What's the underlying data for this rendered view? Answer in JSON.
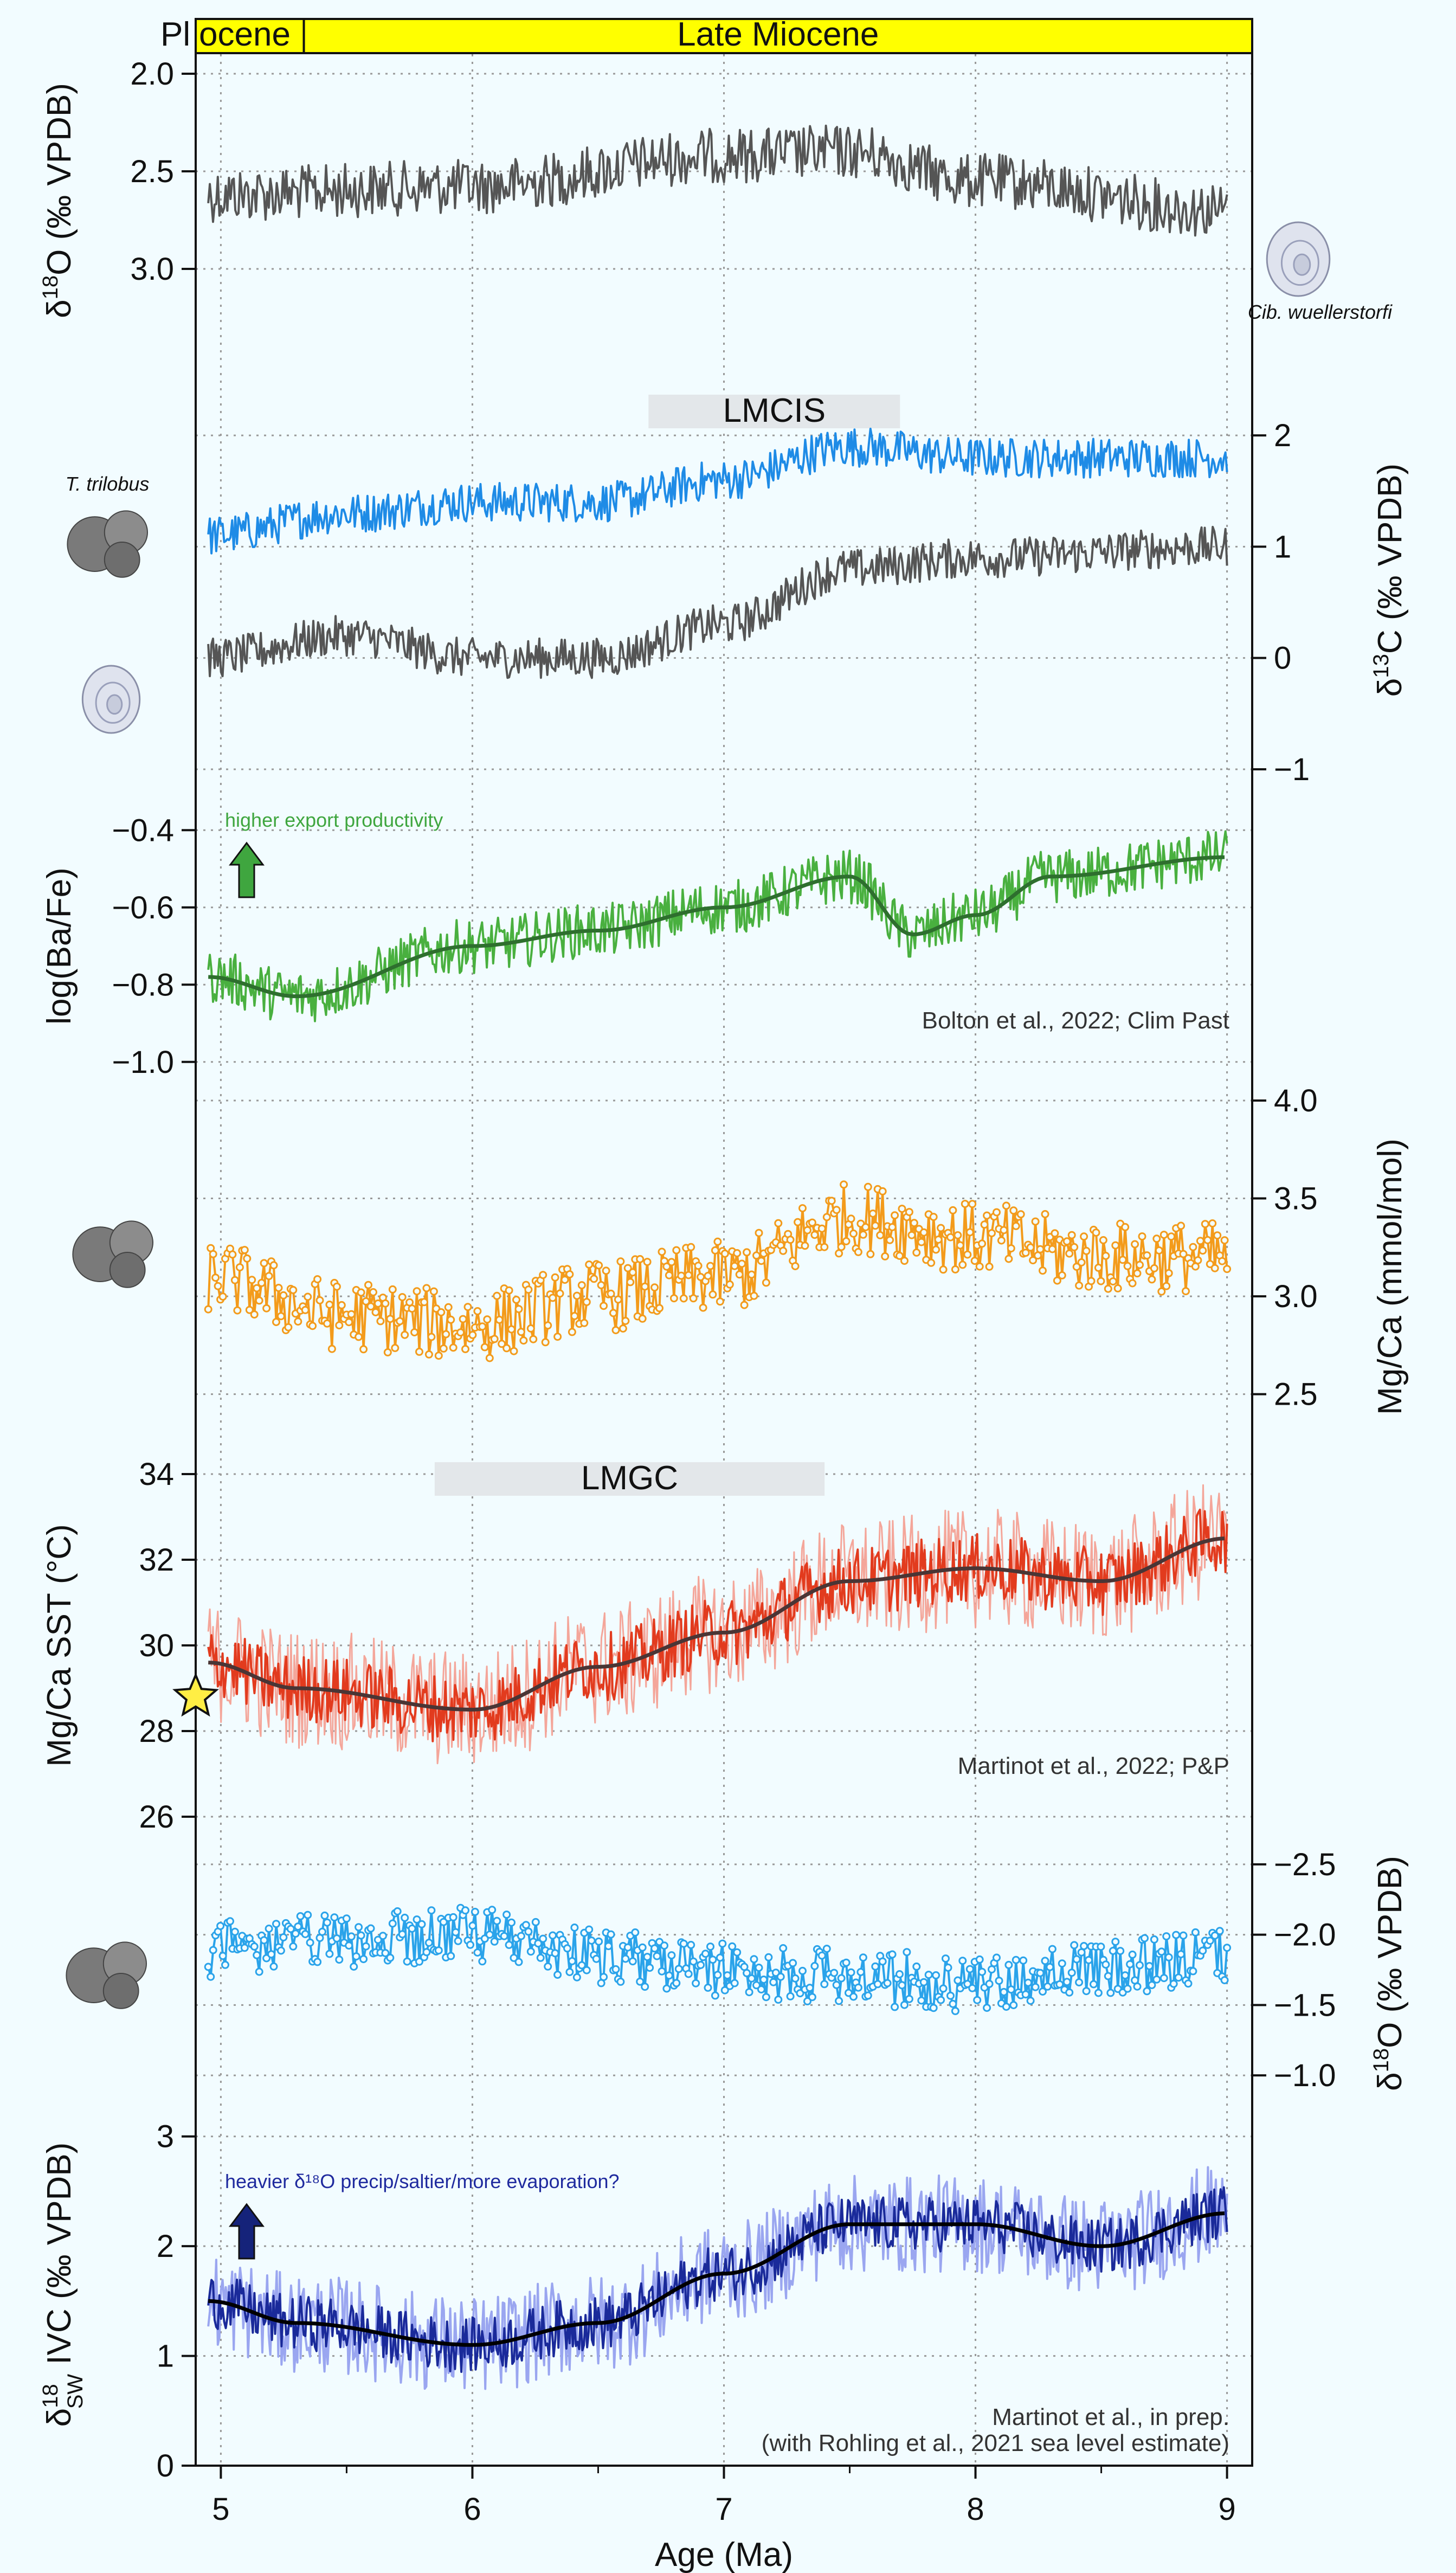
{
  "chart_data": {
    "type": "line",
    "x": {
      "label": "Age (Ma)",
      "range": [
        4.9,
        9.1
      ],
      "ticks": [
        "5",
        "6",
        "7",
        "8",
        "9"
      ],
      "grid": true
    },
    "epochs": [
      {
        "label": "Pliocene",
        "label_part1": "Pl",
        "label_part2": "ocene",
        "range": [
          4.9,
          5.33
        ],
        "color": "#ffff00"
      },
      {
        "label": "Late Miocene",
        "range": [
          5.33,
          9.1
        ],
        "color": "#ffff00"
      }
    ],
    "species": {
      "cib": "Cib. wuellerstorfi",
      "tril": "T. trilobus"
    },
    "panels": [
      {
        "id": "d18O_benthic",
        "ylabel_main": "δ",
        "ylabel_sup": "18",
        "ylabel_rest": "O (‰ VPDB)",
        "axis_side": "left",
        "reversed": true,
        "ylim": [
          3.4,
          1.9
        ],
        "ticks": [
          "2.0",
          "2.5",
          "3.0"
        ],
        "series": [
          {
            "color": "#555555",
            "mean": 2.55,
            "amp": 0.14,
            "trend": [
              [
                4.95,
                2.62
              ],
              [
                6.0,
                2.58
              ],
              [
                7.0,
                2.42
              ],
              [
                7.5,
                2.4
              ],
              [
                8.0,
                2.55
              ],
              [
                9.0,
                2.7
              ]
            ]
          }
        ]
      },
      {
        "id": "d13C",
        "ylabel_main": "δ",
        "ylabel_sup": "13",
        "ylabel_rest": "C (‰ VPDB)",
        "axis_side": "right",
        "ylim": [
          -1.2,
          2.6
        ],
        "ticks": [
          "2",
          "1",
          "0",
          "−1"
        ],
        "band": {
          "label": "LMCIS",
          "range": [
            6.7,
            7.7
          ]
        },
        "series": [
          {
            "name": "T. trilobus",
            "color": "#1e8be6",
            "amp": 0.18,
            "trend": [
              [
                4.95,
                1.1
              ],
              [
                5.5,
                1.3
              ],
              [
                6.0,
                1.4
              ],
              [
                6.5,
                1.4
              ],
              [
                7.0,
                1.6
              ],
              [
                7.5,
                1.9
              ],
              [
                8.0,
                1.8
              ],
              [
                9.0,
                1.8
              ]
            ]
          },
          {
            "name": "Cib. wuellerstorfi",
            "color": "#555555",
            "amp": 0.18,
            "trend": [
              [
                4.95,
                0.0
              ],
              [
                5.5,
                0.2
              ],
              [
                6.0,
                0.0
              ],
              [
                6.5,
                0.0
              ],
              [
                7.0,
                0.3
              ],
              [
                7.5,
                0.8
              ],
              [
                8.0,
                0.9
              ],
              [
                9.0,
                1.0
              ]
            ]
          }
        ]
      },
      {
        "id": "BaFe",
        "ylabel_main": "log(Ba/Fe)",
        "axis_side": "left",
        "ylim": [
          -1.1,
          -0.3
        ],
        "ticks": [
          "−0.4",
          "−0.6",
          "−0.8",
          "−1.0"
        ],
        "note": "higher export productivity",
        "note_color": "#3fa63f",
        "arrow_color": "#3fa63f",
        "citation": "Bolton et al., 2022; Clim Past",
        "series": [
          {
            "color": "#49b03f",
            "amp": 0.07,
            "trend": [
              [
                4.95,
                -0.78
              ],
              [
                5.3,
                -0.83
              ],
              [
                6.0,
                -0.7
              ],
              [
                6.5,
                -0.66
              ],
              [
                7.0,
                -0.6
              ],
              [
                7.5,
                -0.52
              ],
              [
                7.75,
                -0.67
              ],
              [
                8.0,
                -0.62
              ],
              [
                8.3,
                -0.52
              ],
              [
                9.0,
                -0.47
              ]
            ]
          },
          {
            "name": "smooth",
            "color": "#2e6f2e",
            "smooth": true,
            "trend": [
              [
                4.95,
                -0.78
              ],
              [
                5.3,
                -0.83
              ],
              [
                6.0,
                -0.7
              ],
              [
                6.5,
                -0.66
              ],
              [
                7.0,
                -0.6
              ],
              [
                7.5,
                -0.52
              ],
              [
                7.75,
                -0.67
              ],
              [
                8.0,
                -0.62
              ],
              [
                8.3,
                -0.52
              ],
              [
                9.0,
                -0.47
              ]
            ]
          }
        ]
      },
      {
        "id": "MgCa",
        "ylabel_main": "Mg/Ca (mmol/mol)",
        "axis_side": "right",
        "ylim": [
          2.2,
          4.0
        ],
        "ticks": [
          "4.0",
          "3.5",
          "3.0",
          "2.5"
        ],
        "series": [
          {
            "color": "#f39b1b",
            "markers": true,
            "amp": 0.18,
            "trend": [
              [
                4.95,
                3.1
              ],
              [
                5.5,
                2.9
              ],
              [
                6.0,
                2.85
              ],
              [
                6.5,
                3.0
              ],
              [
                7.0,
                3.1
              ],
              [
                7.5,
                3.4
              ],
              [
                8.0,
                3.3
              ],
              [
                8.5,
                3.2
              ],
              [
                9.0,
                3.2
              ]
            ]
          }
        ]
      },
      {
        "id": "SST",
        "ylabel_main": "Mg/Ca SST (°C)",
        "axis_side": "left",
        "ylim": [
          25,
          35
        ],
        "ticks": [
          "34",
          "32",
          "30",
          "28",
          "26"
        ],
        "band": {
          "label": "LMGC",
          "range": [
            5.85,
            7.4
          ]
        },
        "star_value": 28.8,
        "citation": "Martinot et al., 2022; P&P",
        "series": [
          {
            "color": "#f4a69a",
            "amp": 1.4,
            "trend": [
              [
                4.95,
                29.6
              ],
              [
                5.3,
                29.0
              ],
              [
                6.0,
                28.5
              ],
              [
                6.5,
                29.5
              ],
              [
                7.0,
                30.3
              ],
              [
                7.5,
                31.5
              ],
              [
                8.0,
                31.8
              ],
              [
                8.5,
                31.5
              ],
              [
                9.0,
                32.5
              ]
            ]
          },
          {
            "color": "#e23b1e",
            "amp": 0.8,
            "trend": [
              [
                4.95,
                29.6
              ],
              [
                5.3,
                29.0
              ],
              [
                6.0,
                28.5
              ],
              [
                6.5,
                29.5
              ],
              [
                7.0,
                30.3
              ],
              [
                7.5,
                31.5
              ],
              [
                8.0,
                31.8
              ],
              [
                8.5,
                31.5
              ],
              [
                9.0,
                32.5
              ]
            ]
          },
          {
            "name": "smooth",
            "color": "#4a3535",
            "smooth": true,
            "trend": [
              [
                4.95,
                29.6
              ],
              [
                5.3,
                29.0
              ],
              [
                6.0,
                28.5
              ],
              [
                6.5,
                29.5
              ],
              [
                7.0,
                30.3
              ],
              [
                7.5,
                31.5
              ],
              [
                8.0,
                31.8
              ],
              [
                8.5,
                31.5
              ],
              [
                9.0,
                32.5
              ]
            ]
          }
        ]
      },
      {
        "id": "d18O_planktic",
        "ylabel_main": "δ",
        "ylabel_sup": "18",
        "ylabel_rest": "O (‰ VPDB)",
        "axis_side": "right",
        "reversed": true,
        "ylim": [
          -0.8,
          -2.65
        ],
        "ticks": [
          "−2.5",
          "−2.0",
          "−1.5",
          "−1.0"
        ],
        "series": [
          {
            "color": "#2aa3ea",
            "markers": true,
            "amp": 0.2,
            "trend": [
              [
                4.95,
                -1.9
              ],
              [
                5.5,
                -1.95
              ],
              [
                6.0,
                -2.0
              ],
              [
                6.5,
                -1.85
              ],
              [
                7.0,
                -1.75
              ],
              [
                7.5,
                -1.7
              ],
              [
                8.0,
                -1.65
              ],
              [
                8.5,
                -1.75
              ],
              [
                9.0,
                -1.85
              ]
            ]
          }
        ]
      },
      {
        "id": "d18Osw",
        "ylabel_main": "δ",
        "ylabel_sup": "18",
        "ylabel_sub": "SW",
        "ylabel_rest": " IVC (‰ VPDB)",
        "axis_side": "left",
        "ylim": [
          0,
          3.3
        ],
        "ticks": [
          "3",
          "2",
          "1",
          "0"
        ],
        "note": "heavier δ¹⁸O precip/saltier/more evaporation?",
        "note_color": "#1f2a9e",
        "arrow_color": "#15237a",
        "citation": "Martinot et al., in prep.",
        "citation2": "(with Rohling et al., 2021 sea level estimate)",
        "series": [
          {
            "color": "#9aa6f0",
            "amp": 0.45,
            "trend": [
              [
                4.95,
                1.5
              ],
              [
                5.3,
                1.3
              ],
              [
                6.0,
                1.1
              ],
              [
                6.5,
                1.3
              ],
              [
                7.0,
                1.75
              ],
              [
                7.5,
                2.2
              ],
              [
                8.0,
                2.2
              ],
              [
                8.5,
                2.0
              ],
              [
                9.0,
                2.3
              ]
            ]
          },
          {
            "color": "#1a2a9a",
            "amp": 0.25,
            "trend": [
              [
                4.95,
                1.5
              ],
              [
                5.3,
                1.3
              ],
              [
                6.0,
                1.1
              ],
              [
                6.5,
                1.3
              ],
              [
                7.0,
                1.75
              ],
              [
                7.5,
                2.2
              ],
              [
                8.0,
                2.2
              ],
              [
                8.5,
                2.0
              ],
              [
                9.0,
                2.3
              ]
            ]
          },
          {
            "name": "smooth",
            "color": "#000000",
            "smooth": true,
            "trend": [
              [
                4.95,
                1.5
              ],
              [
                5.3,
                1.3
              ],
              [
                6.0,
                1.1
              ],
              [
                6.5,
                1.3
              ],
              [
                7.0,
                1.75
              ],
              [
                7.5,
                2.2
              ],
              [
                8.0,
                2.2
              ],
              [
                8.5,
                2.0
              ],
              [
                9.0,
                2.3
              ]
            ]
          }
        ]
      }
    ]
  }
}
